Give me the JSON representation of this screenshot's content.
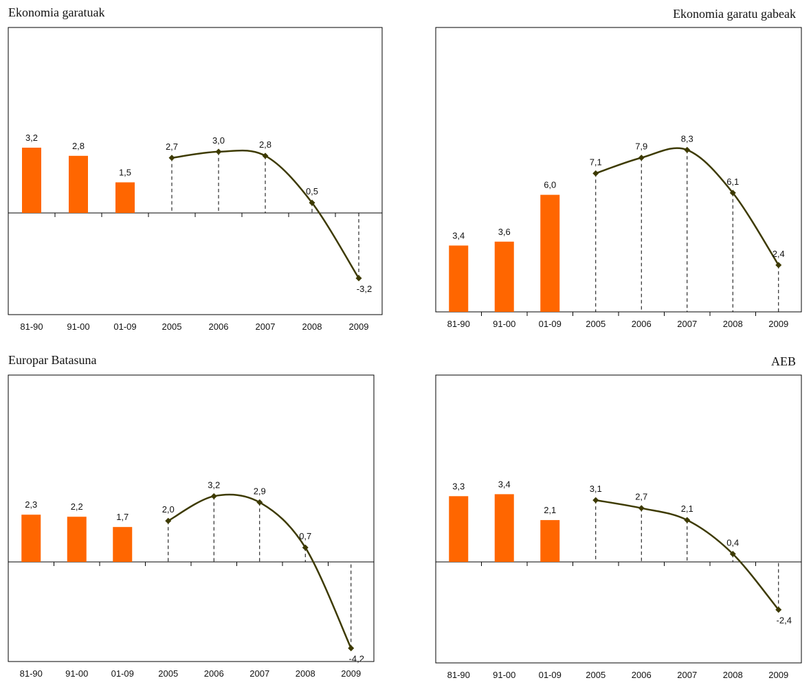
{
  "chart_data": [
    {
      "type": "bar",
      "title": "Ekonomia garatuak",
      "categories": [
        "81-90",
        "91-00",
        "01-09",
        "2005",
        "2006",
        "2007",
        "2008",
        "2009"
      ],
      "bars": [
        3.2,
        2.8,
        1.5
      ],
      "line": [
        2.7,
        3.0,
        2.8,
        0.5,
        -3.2
      ],
      "bar_labels": [
        "3,2",
        "2,8",
        "1,5"
      ],
      "line_labels": [
        "2,7",
        "3,0",
        "2,8",
        "0,5",
        "-3,2"
      ],
      "ylim": [
        -5,
        10
      ],
      "bar_color": "#ff6600",
      "line_color": "#3d3a00"
    },
    {
      "type": "bar",
      "title": "Ekonomia garatu gabeak",
      "categories": [
        "81-90",
        "91-00",
        "01-09",
        "2005",
        "2006",
        "2007",
        "2008",
        "2009"
      ],
      "bars": [
        3.4,
        3.6,
        6.0
      ],
      "line": [
        7.1,
        7.9,
        8.3,
        6.1,
        2.4
      ],
      "bar_labels": [
        "3,4",
        "3,6",
        "6,0"
      ],
      "line_labels": [
        "7,1",
        "7,9",
        "8,3",
        "6,1",
        "2,4"
      ],
      "ylim": [
        0,
        9
      ],
      "bar_color": "#ff6600",
      "line_color": "#3d3a00"
    },
    {
      "type": "bar",
      "title": "Europar Batasuna",
      "categories": [
        "81-90",
        "91-00",
        "01-09",
        "2005",
        "2006",
        "2007",
        "2008",
        "2009"
      ],
      "bars": [
        2.3,
        2.2,
        1.7
      ],
      "line": [
        2.0,
        3.2,
        2.9,
        0.7,
        -4.2
      ],
      "bar_labels": [
        "2,3",
        "2,2",
        "1,7"
      ],
      "line_labels": [
        "2,0",
        "3,2",
        "2,9",
        "0,7",
        "-4,2"
      ],
      "ylim": [
        -6,
        8
      ],
      "bar_color": "#ff6600",
      "line_color": "#3d3a00"
    },
    {
      "type": "bar",
      "title": "AEB",
      "categories": [
        "81-90",
        "91-00",
        "01-09",
        "2005",
        "2006",
        "2007",
        "2008",
        "2009"
      ],
      "bars": [
        3.3,
        3.4,
        2.1
      ],
      "line": [
        3.1,
        2.7,
        2.1,
        0.4,
        -2.4
      ],
      "bar_labels": [
        "3,3",
        "3,4",
        "2,1"
      ],
      "line_labels": [
        "3,1",
        "2,7",
        "2,1",
        "0,4",
        "-2,4"
      ],
      "ylim": [
        -4,
        6
      ],
      "bar_color": "#ff6600",
      "line_color": "#3d3a00"
    }
  ]
}
